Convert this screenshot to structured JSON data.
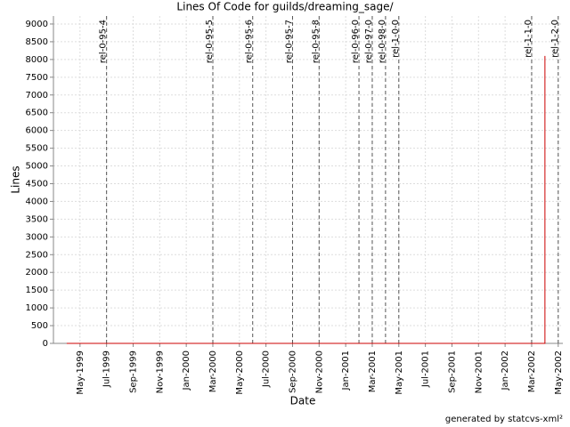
{
  "chart_data": {
    "type": "line",
    "title": "Lines Of Code for guilds/dreaming_sage/",
    "x_label": "Date",
    "y_label": "Lines",
    "footer": "generated by statcvs-xml²",
    "x": [
      "1999-04",
      "2002-04",
      "2002-04"
    ],
    "series": [
      {
        "name": "Lines",
        "color": "#cc0000",
        "values": [
          0,
          0,
          8100
        ]
      }
    ],
    "xlim": [
      "1999-03",
      "2002-05"
    ],
    "xticks": [
      {
        "value": "1999-05",
        "label": "May-1999"
      },
      {
        "value": "1999-07",
        "label": "Jul-1999"
      },
      {
        "value": "1999-09",
        "label": "Sep-1999"
      },
      {
        "value": "1999-11",
        "label": "Nov-1999"
      },
      {
        "value": "2000-01",
        "label": "Jan-2000"
      },
      {
        "value": "2000-03",
        "label": "Mar-2000"
      },
      {
        "value": "2000-05",
        "label": "May-2000"
      },
      {
        "value": "2000-07",
        "label": "Jul-2000"
      },
      {
        "value": "2000-09",
        "label": "Sep-2000"
      },
      {
        "value": "2000-11",
        "label": "Nov-2000"
      },
      {
        "value": "2001-01",
        "label": "Jan-2001"
      },
      {
        "value": "2001-03",
        "label": "Mar-2001"
      },
      {
        "value": "2001-05",
        "label": "May-2001"
      },
      {
        "value": "2001-07",
        "label": "Jul-2001"
      },
      {
        "value": "2001-09",
        "label": "Sep-2001"
      },
      {
        "value": "2001-11",
        "label": "Nov-2001"
      },
      {
        "value": "2002-01",
        "label": "Jan-2002"
      },
      {
        "value": "2002-03",
        "label": "Mar-2002"
      },
      {
        "value": "2002-05",
        "label": "May-2002"
      }
    ],
    "ylim": [
      0,
      9225
    ],
    "yticks": [
      0,
      500,
      1000,
      1500,
      2000,
      2500,
      3000,
      3500,
      4000,
      4500,
      5000,
      5500,
      6000,
      6500,
      7000,
      7500,
      8000,
      8500,
      9000
    ],
    "grid": true,
    "markers": [
      {
        "x": "1999-07",
        "label": "rel-0-95-4"
      },
      {
        "x": "2000-03",
        "label": "rel-0-95-5"
      },
      {
        "x": "2000-06",
        "label": "rel-0-95-6"
      },
      {
        "x": "2000-09",
        "label": "rel-0-95-7"
      },
      {
        "x": "2000-11",
        "label": "rel-0-95-8"
      },
      {
        "x": "2001-02",
        "label": "rel-0-96-0"
      },
      {
        "x": "2001-03",
        "label": "rel-0-97-0"
      },
      {
        "x": "2001-04",
        "label": "rel-0-98-0"
      },
      {
        "x": "2001-05",
        "label": "rel-1-0-0"
      },
      {
        "x": "2002-03",
        "label": "rel-1-1-0"
      },
      {
        "x": "2002-05",
        "label": "rel-1-2-0"
      }
    ]
  }
}
